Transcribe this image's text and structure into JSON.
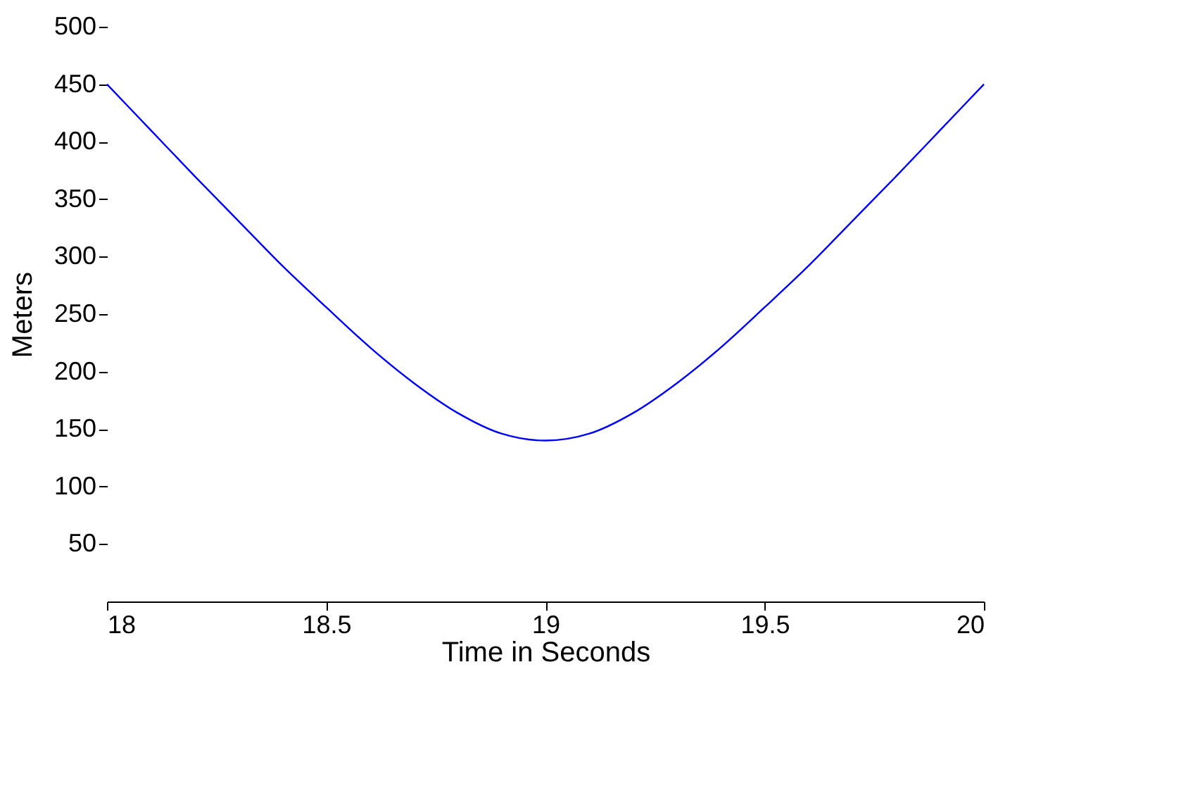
{
  "chart_data": {
    "type": "line",
    "xlabel": "Time in Seconds",
    "ylabel": "Meters",
    "x": [
      18,
      18.1,
      18.2,
      18.3,
      18.4,
      18.5,
      18.6,
      18.7,
      18.8,
      18.9,
      19,
      19.1,
      19.2,
      19.3,
      19.4,
      19.5,
      19.6,
      19.7,
      19.8,
      19.9,
      20
    ],
    "series": [
      {
        "color": "#0000ff",
        "values": [
          450,
          410,
          370,
          331,
          292,
          256,
          221,
          190,
          164,
          146,
          140,
          146,
          164,
          190,
          221,
          256,
          292,
          331,
          370,
          410,
          450
        ]
      }
    ],
    "xlim": [
      18,
      20
    ],
    "ylim": [
      0,
      500
    ],
    "xticks": [
      18,
      18.5,
      19,
      19.5,
      20
    ],
    "yticks": [
      50,
      100,
      150,
      200,
      250,
      300,
      350,
      400,
      450,
      500
    ],
    "grid": false,
    "marker": "none",
    "line_style": "solid"
  }
}
